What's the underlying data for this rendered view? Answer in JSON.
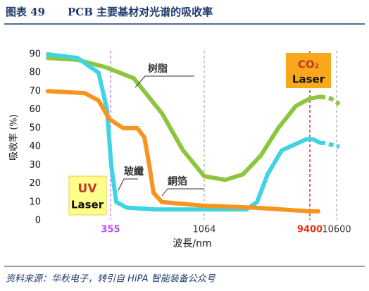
{
  "header": {
    "figure_no": "图表 49",
    "title": "PCB 主要基材对光谱的吸收率"
  },
  "chart_data": {
    "type": "line",
    "y_label": "吸收率 (%)",
    "x_label": "波長/nm",
    "xlim": [
      0,
      11100
    ],
    "xticks": [
      355,
      1064,
      9400,
      10600
    ],
    "xtick_colors": [
      "#b84ef0",
      "#333333",
      "#e8321e",
      "#333333"
    ],
    "marker_line_colors": [
      "#b84ef0",
      "#999999",
      "#e8321e",
      "#999999"
    ],
    "ylim": [
      0,
      90
    ],
    "yticks": [
      0,
      10,
      20,
      30,
      40,
      50,
      60,
      70,
      80,
      90
    ],
    "series": [
      {
        "name": "树脂",
        "color": "#8cc63e",
        "x": [
          0,
          168,
          327,
          531,
          744,
          904,
          1064,
          2732,
          4122,
          5512,
          6902,
          8292,
          9400,
          9874
        ],
        "values": [
          88,
          87,
          83,
          77,
          58,
          38,
          24,
          22,
          25,
          35,
          50,
          62,
          66,
          67
        ],
        "projection": {
          "x": [
            9874,
            10348,
            10718
          ],
          "values": [
            67,
            66,
            63
          ]
        }
      },
      {
        "name": "玻纖",
        "color": "#3fd3e3",
        "x": [
          0,
          168,
          287,
          335,
          360,
          398,
          478,
          691,
          1064,
          4400,
          5234,
          6068,
          7180,
          9122,
          9558,
          9874
        ],
        "values": [
          90,
          88,
          80,
          60,
          30,
          10,
          7,
          6,
          6,
          6,
          10,
          25,
          38,
          44,
          44,
          42
        ],
        "projection": {
          "x": [
            9874,
            10032,
            10718
          ],
          "values": [
            42,
            42,
            40
          ]
        }
      },
      {
        "name": "銅箔",
        "color": "#f7941d",
        "x": [
          0,
          208,
          287,
          347,
          451,
          558,
          611,
          648,
          680,
          744,
          1064,
          4956,
          9400,
          9779
        ],
        "values": [
          70,
          69,
          65,
          55,
          50,
          50,
          45,
          30,
          15,
          10,
          8,
          7,
          5,
          5
        ]
      }
    ],
    "annotations": {
      "uv_laser": [
        "UV",
        "Laser"
      ],
      "co2_laser": [
        "CO₂",
        "Laser"
      ]
    }
  },
  "source": "资料来源：华秋电子，转引自 HiPA 智能装备公众号"
}
